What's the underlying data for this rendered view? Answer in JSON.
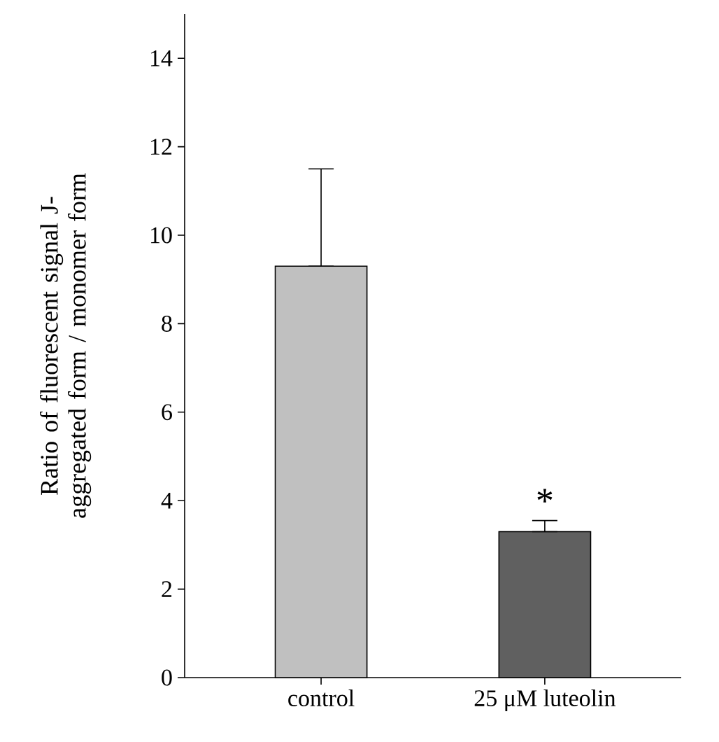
{
  "chart_data": {
    "type": "bar",
    "categories": [
      "control",
      "25 μM luteolin"
    ],
    "values": [
      9.3,
      3.3
    ],
    "colors": [
      "#c0c0c0",
      "#606060"
    ],
    "errors": [
      [
        9.3,
        11.5
      ],
      [
        3.3,
        3.55
      ]
    ],
    "ylabel": "Ratio of fluorescent signal J-aggregated form / monomer form",
    "ylim": [
      0,
      15
    ],
    "yticks": [
      0,
      2,
      4,
      6,
      8,
      10,
      12,
      14
    ],
    "annotations": [
      "*"
    ],
    "grid": false
  }
}
